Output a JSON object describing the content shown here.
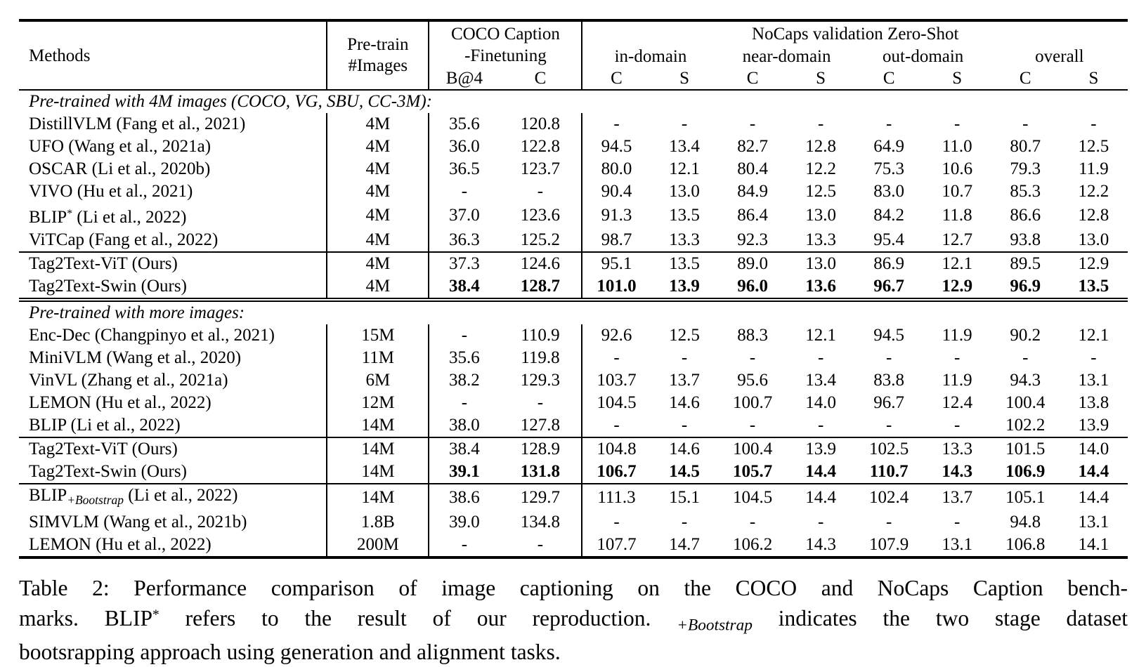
{
  "header": {
    "methods": "Methods",
    "pretrain": [
      "Pre-train",
      "#Images"
    ],
    "coco": [
      "COCO Caption",
      "-Finetuning"
    ],
    "coco_metrics": [
      "B@4",
      "C"
    ],
    "nocaps_title": "NoCaps validation Zero-Shot",
    "nocaps_groups": [
      "in-domain",
      "near-domain",
      "out-domain",
      "overall"
    ],
    "nocaps_metrics": [
      "C",
      "S",
      "C",
      "S",
      "C",
      "S",
      "C",
      "S"
    ]
  },
  "sections": [
    {
      "label": "Pre-trained with 4M images (COCO, VG, SBU, CC-3M):",
      "rows": [
        {
          "method": [
            [
              "t",
              "DistillVLM (Fang et al., 2021)"
            ]
          ],
          "images": "4M",
          "values": [
            "35.6",
            "120.8",
            "-",
            "-",
            "-",
            "-",
            "-",
            "-",
            "-",
            "-"
          ]
        },
        {
          "method": [
            [
              "t",
              "UFO (Wang et al., 2021a)"
            ]
          ],
          "images": "4M",
          "values": [
            "36.0",
            "122.8",
            "94.5",
            "13.4",
            "82.7",
            "12.8",
            "64.9",
            "11.0",
            "80.7",
            "12.5"
          ]
        },
        {
          "method": [
            [
              "t",
              "OSCAR (Li et al., 2020b)"
            ]
          ],
          "images": "4M",
          "values": [
            "36.5",
            "123.7",
            "80.0",
            "12.1",
            "80.4",
            "12.2",
            "75.3",
            "10.6",
            "79.3",
            "11.9"
          ]
        },
        {
          "method": [
            [
              "t",
              "VIVO (Hu et al., 2021)"
            ]
          ],
          "images": "4M",
          "values": [
            "-",
            "-",
            "90.4",
            "13.0",
            "84.9",
            "12.5",
            "83.0",
            "10.7",
            "85.3",
            "12.2"
          ]
        },
        {
          "method": [
            [
              "t",
              "BLIP"
            ],
            [
              "sup",
              "*"
            ],
            [
              "t",
              " (Li et al., 2022)"
            ]
          ],
          "images": "4M",
          "values": [
            "37.0",
            "123.6",
            "91.3",
            "13.5",
            "86.4",
            "13.0",
            "84.2",
            "11.8",
            "86.6",
            "12.8"
          ]
        },
        {
          "method": [
            [
              "t",
              "ViTCap (Fang et al., 2022)"
            ]
          ],
          "images": "4M",
          "values": [
            "36.3",
            "125.2",
            "98.7",
            "13.3",
            "92.3",
            "13.3",
            "95.4",
            "12.7",
            "93.8",
            "13.0"
          ]
        },
        {
          "method": [
            [
              "t",
              "Tag2Text-ViT (Ours)"
            ]
          ],
          "images": "4M",
          "rule_above": true,
          "values": [
            "37.3",
            "124.6",
            "95.1",
            "13.5",
            "89.0",
            "13.0",
            "86.9",
            "12.1",
            "89.5",
            "12.9"
          ]
        },
        {
          "method": [
            [
              "t",
              "Tag2Text-Swin (Ours)"
            ]
          ],
          "images": "4M",
          "bold_values": true,
          "double_rule_below": true,
          "values": [
            "38.4",
            "128.7",
            "101.0",
            "13.9",
            "96.0",
            "13.6",
            "96.7",
            "12.9",
            "96.9",
            "13.5"
          ]
        }
      ]
    },
    {
      "label": "Pre-trained with more images:",
      "rows": [
        {
          "method": [
            [
              "t",
              "Enc-Dec (Changpinyo et al., 2021)"
            ]
          ],
          "images": "15M",
          "values": [
            "-",
            "110.9",
            "92.6",
            "12.5",
            "88.3",
            "12.1",
            "94.5",
            "11.9",
            "90.2",
            "12.1"
          ]
        },
        {
          "method": [
            [
              "t",
              "MiniVLM (Wang et al., 2020)"
            ]
          ],
          "images": "11M",
          "values": [
            "35.6",
            "119.8",
            "-",
            "-",
            "-",
            "-",
            "-",
            "-",
            "-",
            "-"
          ]
        },
        {
          "method": [
            [
              "t",
              "VinVL (Zhang et al., 2021a)"
            ]
          ],
          "images": "6M",
          "values": [
            "38.2",
            "129.3",
            "103.7",
            "13.7",
            "95.6",
            "13.4",
            "83.8",
            "11.9",
            "94.3",
            "13.1"
          ]
        },
        {
          "method": [
            [
              "t",
              "LEMON (Hu et al., 2022)"
            ]
          ],
          "images": "12M",
          "values": [
            "-",
            "-",
            "104.5",
            "14.6",
            "100.7",
            "14.0",
            "96.7",
            "12.4",
            "100.4",
            "13.8"
          ]
        },
        {
          "method": [
            [
              "t",
              "BLIP (Li et al., 2022)"
            ]
          ],
          "images": "14M",
          "values": [
            "38.0",
            "127.8",
            "-",
            "-",
            "-",
            "-",
            "-",
            "-",
            "102.2",
            "13.9"
          ]
        },
        {
          "method": [
            [
              "t",
              "Tag2Text-ViT (Ours)"
            ]
          ],
          "images": "14M",
          "rule_above": true,
          "values": [
            "38.4",
            "128.9",
            "104.8",
            "14.6",
            "100.4",
            "13.9",
            "102.5",
            "13.3",
            "101.5",
            "14.0"
          ]
        },
        {
          "method": [
            [
              "t",
              "Tag2Text-Swin (Ours)"
            ]
          ],
          "images": "14M",
          "bold_values": true,
          "values": [
            "39.1",
            "131.8",
            "106.7",
            "14.5",
            "105.7",
            "14.4",
            "110.7",
            "14.3",
            "106.9",
            "14.4"
          ]
        },
        {
          "method": [
            [
              "t",
              "BLIP"
            ],
            [
              "sub",
              "+Bootstrap"
            ],
            [
              "t",
              " (Li et al., 2022)"
            ]
          ],
          "images": "14M",
          "rule_above": true,
          "values": [
            "38.6",
            "129.7",
            "111.3",
            "15.1",
            "104.5",
            "14.4",
            "102.4",
            "13.7",
            "105.1",
            "14.4"
          ]
        },
        {
          "method": [
            [
              "t",
              "SIMVLM (Wang et al., 2021b)"
            ]
          ],
          "images": "1.8B",
          "values": [
            "39.0",
            "134.8",
            "-",
            "-",
            "-",
            "-",
            "-",
            "-",
            "94.8",
            "13.1"
          ]
        },
        {
          "method": [
            [
              "t",
              "LEMON (Hu et al., 2022)"
            ]
          ],
          "images": "200M",
          "values": [
            "-",
            "-",
            "107.7",
            "14.7",
            "106.2",
            "14.3",
            "107.9",
            "13.1",
            "106.8",
            "14.1"
          ]
        }
      ]
    }
  ],
  "caption": {
    "lines": [
      [
        [
          "t",
          "Table 2: Performance comparison of image captioning on the COCO and NoCaps Caption bench-"
        ]
      ],
      [
        [
          "t",
          "marks.  BLIP"
        ],
        [
          "sup",
          "*"
        ],
        [
          "t",
          " refers to the result of our reproduction.  "
        ],
        [
          "sub",
          "+Bootstrap"
        ],
        [
          "t",
          " indicates the two stage dataset"
        ]
      ],
      [
        [
          "t",
          "bootsrapping approach using generation and alignment tasks."
        ]
      ]
    ]
  }
}
